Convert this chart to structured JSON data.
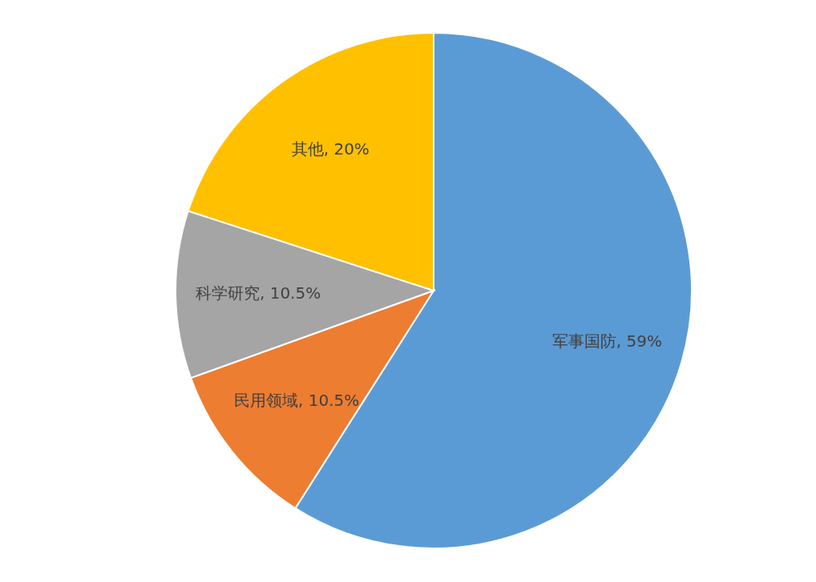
{
  "chart_data": {
    "type": "pie",
    "categories": [
      "军事国防",
      "民用领域",
      "科学研究",
      "其他"
    ],
    "values": [
      59,
      10.5,
      10.5,
      20
    ],
    "value_labels": [
      "59%",
      "10.5%",
      "10.5%",
      "20%"
    ],
    "colors": [
      "#5b9bd5",
      "#ed7d31",
      "#a5a5a5",
      "#ffc000"
    ],
    "legend": false
  }
}
